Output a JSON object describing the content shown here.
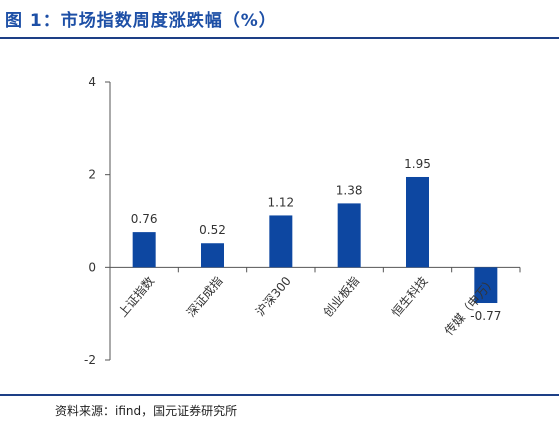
{
  "header": {
    "title": "图 1：市场指数周度涨跌幅（%）"
  },
  "footer": {
    "source": "资料来源：ifind，国元证券研究所"
  },
  "chart_data": {
    "type": "bar",
    "title": "",
    "xlabel": "",
    "ylabel": "",
    "categories": [
      "上证指数",
      "深证成指",
      "沪深300",
      "创业板指",
      "恒生科技",
      "传媒（申万）"
    ],
    "values": [
      0.76,
      0.52,
      1.12,
      1.38,
      1.95,
      -0.77
    ],
    "value_labels": [
      "0.76",
      "0.52",
      "1.12",
      "1.38",
      "1.95",
      "-0.77"
    ],
    "ylim": [
      -2,
      4
    ],
    "yticks": [
      -2,
      0,
      2,
      4
    ],
    "ytick_labels": [
      "-2",
      "0",
      "2",
      "4"
    ],
    "bar_color": "#0d47a1",
    "axis_color": "#555555",
    "grid": false,
    "legend": "none"
  }
}
